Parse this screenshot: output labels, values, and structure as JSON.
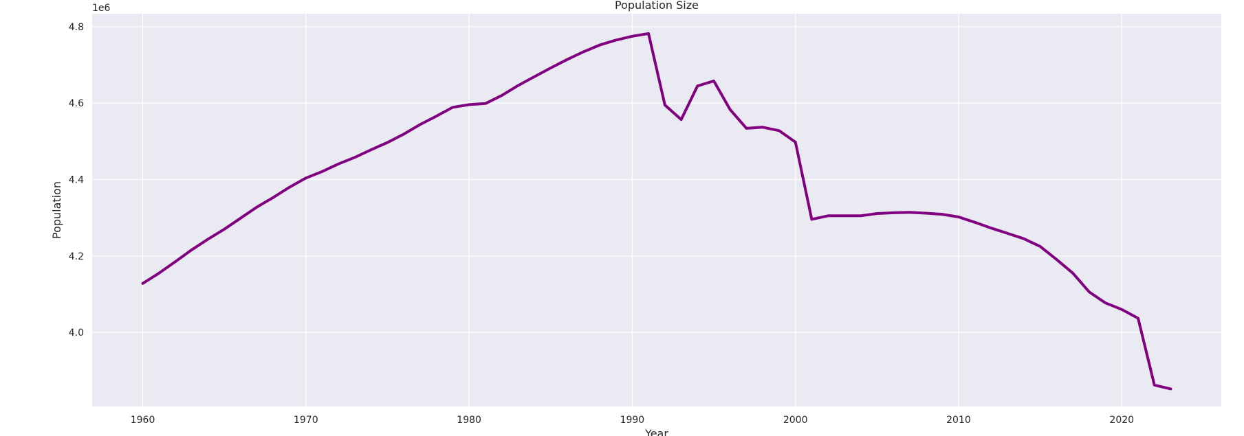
{
  "chart_data": {
    "type": "line",
    "title": "Population Size",
    "xlabel": "Year",
    "ylabel": "Population",
    "y_offset_label": "1e6",
    "xlim": [
      1956.9,
      2026.1
    ],
    "ylim": [
      3806000,
      4834000
    ],
    "x_ticks": [
      1960,
      1970,
      1980,
      1990,
      2000,
      2010,
      2020
    ],
    "x_tick_labels": [
      "1960",
      "1970",
      "1980",
      "1990",
      "2000",
      "2010",
      "2020"
    ],
    "y_ticks": [
      4000000,
      4200000,
      4400000,
      4600000,
      4800000
    ],
    "y_tick_labels": [
      "4.0",
      "4.2",
      "4.4",
      "4.6",
      "4.8"
    ],
    "grid": true,
    "background": "#EAEAF2",
    "series": [
      {
        "color": "#800080",
        "x": [
          1960,
          1961,
          1962,
          1963,
          1964,
          1965,
          1966,
          1967,
          1968,
          1969,
          1970,
          1971,
          1972,
          1973,
          1974,
          1975,
          1976,
          1977,
          1978,
          1979,
          1980,
          1981,
          1982,
          1983,
          1984,
          1985,
          1986,
          1987,
          1988,
          1989,
          1990,
          1991,
          1992,
          1993,
          1994,
          1995,
          1996,
          1997,
          1998,
          1999,
          2000,
          2001,
          2002,
          2003,
          2004,
          2005,
          2006,
          2007,
          2008,
          2009,
          2010,
          2011,
          2012,
          2013,
          2014,
          2015,
          2016,
          2017,
          2018,
          2019,
          2020,
          2021,
          2022,
          2023
        ],
        "y": [
          4128000,
          4155000,
          4185000,
          4216000,
          4244000,
          4270000,
          4299000,
          4328000,
          4353000,
          4380000,
          4404000,
          4421000,
          4441000,
          4458000,
          4478000,
          4497000,
          4519000,
          4544000,
          4566000,
          4589000,
          4596000,
          4599000,
          4620000,
          4646000,
          4669000,
          4692000,
          4714000,
          4734000,
          4752000,
          4765000,
          4775000,
          4782000,
          4595000,
          4557000,
          4645000,
          4658000,
          4583000,
          4534000,
          4537000,
          4528000,
          4498000,
          4296000,
          4305000,
          4305000,
          4305000,
          4311000,
          4313000,
          4314000,
          4312000,
          4309000,
          4302000,
          4288000,
          4273000,
          4259000,
          4245000,
          4225000,
          4191000,
          4155000,
          4106000,
          4077000,
          4060000,
          4037000,
          3862000,
          3852000
        ]
      }
    ]
  }
}
